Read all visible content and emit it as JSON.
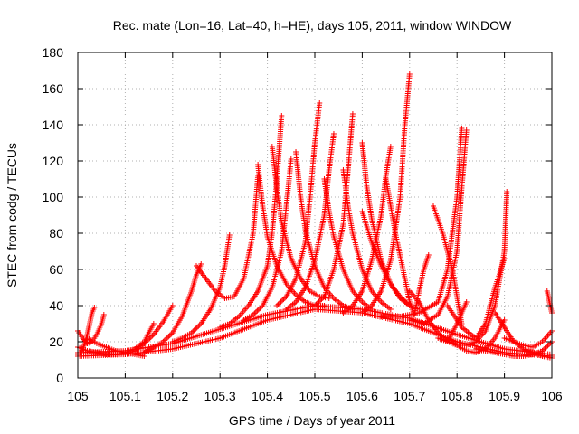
{
  "chart_data": {
    "type": "scatter",
    "title": "Rec. mate (Lon=16, Lat=40, h=HE), days 105, 2011, window WINDOW",
    "xlabel": "GPS time / Days of year 2011",
    "ylabel": "STEC from codg / TECUs",
    "xlim": [
      105,
      106
    ],
    "ylim": [
      0,
      180
    ],
    "x_ticks": [
      105,
      105.1,
      105.2,
      105.3,
      105.4,
      105.5,
      105.6,
      105.7,
      105.8,
      105.9,
      106
    ],
    "x_tick_labels": [
      "105",
      "105.1",
      "105.2",
      "105.3",
      "105.4",
      "105.5",
      "105.6",
      "105.7",
      "105.8",
      "105.9",
      "106"
    ],
    "y_ticks": [
      0,
      20,
      40,
      60,
      80,
      100,
      120,
      140,
      160,
      180
    ],
    "y_tick_labels": [
      "0",
      "20",
      "40",
      "60",
      "80",
      "100",
      "120",
      "140",
      "160",
      "180"
    ],
    "grid": true,
    "marker": "plus",
    "color": "#ff0000",
    "series": [
      {
        "x": [
          105.0,
          105.005,
          105.01,
          105.015,
          105.02,
          105.025,
          105.03,
          105.035
        ],
        "y": [
          13,
          14,
          16,
          19,
          24,
          30,
          36,
          39
        ]
      },
      {
        "x": [
          105.0,
          105.01,
          105.02,
          105.03,
          105.04,
          105.05,
          105.055
        ],
        "y": [
          26,
          22,
          19,
          20,
          24,
          30,
          35
        ]
      },
      {
        "x": [
          105.0,
          105.02,
          105.04,
          105.06,
          105.08,
          105.1,
          105.12,
          105.14,
          105.16
        ],
        "y": [
          17,
          15,
          14,
          13,
          13,
          14,
          16,
          20,
          30
        ]
      },
      {
        "x": [
          105.02,
          105.04,
          105.06,
          105.08,
          105.1,
          105.12,
          105.14
        ],
        "y": [
          22,
          19,
          17,
          15,
          14,
          13,
          12
        ]
      },
      {
        "x": [
          105.1,
          105.12,
          105.14,
          105.16,
          105.18,
          105.2
        ],
        "y": [
          13,
          15,
          19,
          24,
          31,
          40
        ]
      },
      {
        "x": [
          105.14,
          105.16,
          105.18,
          105.2,
          105.22,
          105.24,
          105.25,
          105.26
        ],
        "y": [
          14,
          17,
          20,
          25,
          34,
          48,
          57,
          63
        ]
      },
      {
        "x": [
          105.2,
          105.22,
          105.24,
          105.26,
          105.28,
          105.3,
          105.31,
          105.32
        ],
        "y": [
          20,
          22,
          25,
          30,
          38,
          50,
          62,
          79
        ]
      },
      {
        "x": [
          105.25,
          105.27,
          105.29,
          105.31,
          105.33,
          105.35,
          105.37,
          105.38
        ],
        "y": [
          62,
          55,
          48,
          44,
          45,
          55,
          80,
          112
        ]
      },
      {
        "x": [
          105.3,
          105.32,
          105.34,
          105.36,
          105.38,
          105.4,
          105.41,
          105.42,
          105.43
        ],
        "y": [
          28,
          30,
          34,
          40,
          48,
          62,
          80,
          110,
          145
        ]
      },
      {
        "x": [
          105.38,
          105.39,
          105.4,
          105.42,
          105.44,
          105.46,
          105.48,
          105.5,
          105.52
        ],
        "y": [
          118,
          95,
          78,
          62,
          52,
          46,
          42,
          40,
          40
        ]
      },
      {
        "x": [
          105.41,
          105.42,
          105.43,
          105.45,
          105.47,
          105.49,
          105.51,
          105.53
        ],
        "y": [
          128,
          105,
          86,
          66,
          55,
          48,
          45,
          44
        ]
      },
      {
        "x": [
          105.35,
          105.37,
          105.39,
          105.41,
          105.43,
          105.44,
          105.45
        ],
        "y": [
          32,
          35,
          40,
          50,
          70,
          95,
          121
        ]
      },
      {
        "x": [
          105.42,
          105.44,
          105.46,
          105.48,
          105.49,
          105.5,
          105.51
        ],
        "y": [
          40,
          45,
          55,
          75,
          100,
          130,
          152
        ]
      },
      {
        "x": [
          105.44,
          105.46,
          105.48,
          105.5,
          105.52,
          105.53,
          105.54
        ],
        "y": [
          38,
          42,
          50,
          65,
          90,
          115,
          135
        ]
      },
      {
        "x": [
          105.46,
          105.47,
          105.48,
          105.5,
          105.52,
          105.54,
          105.56,
          105.58
        ],
        "y": [
          125,
          100,
          82,
          62,
          50,
          44,
          40,
          38
        ]
      },
      {
        "x": [
          105.5,
          105.52,
          105.54,
          105.56,
          105.57,
          105.58
        ],
        "y": [
          40,
          45,
          60,
          85,
          115,
          146
        ]
      },
      {
        "x": [
          105.52,
          105.53,
          105.54,
          105.56,
          105.58,
          105.6,
          105.62
        ],
        "y": [
          110,
          92,
          78,
          60,
          48,
          42,
          38
        ]
      },
      {
        "x": [
          105.56,
          105.57,
          105.58,
          105.6,
          105.62,
          105.64,
          105.66
        ],
        "y": [
          115,
          95,
          80,
          60,
          48,
          42,
          38
        ]
      },
      {
        "x": [
          105.6,
          105.61,
          105.62,
          105.64,
          105.66,
          105.68,
          105.7
        ],
        "y": [
          130,
          105,
          88,
          65,
          52,
          44,
          40
        ]
      },
      {
        "x": [
          105.56,
          105.58,
          105.6,
          105.62,
          105.64,
          105.65,
          105.66
        ],
        "y": [
          36,
          40,
          48,
          65,
          90,
          112,
          128
        ]
      },
      {
        "x": [
          105.6,
          105.62,
          105.64,
          105.66,
          105.68,
          105.69,
          105.7
        ],
        "y": [
          36,
          40,
          48,
          65,
          100,
          140,
          168
        ]
      },
      {
        "x": [
          105.6,
          105.62,
          105.64,
          105.66,
          105.68,
          105.7,
          105.72
        ],
        "y": [
          92,
          75,
          62,
          52,
          45,
          40,
          38
        ]
      },
      {
        "x": [
          105.65,
          105.67,
          105.69,
          105.7,
          105.71,
          105.72,
          105.73,
          105.74
        ],
        "y": [
          110,
          80,
          55,
          42,
          35,
          48,
          60,
          68
        ]
      },
      {
        "x": [
          105.64,
          105.68,
          105.72,
          105.76,
          105.78,
          105.8,
          105.81
        ],
        "y": [
          34,
          34,
          36,
          42,
          60,
          100,
          138
        ]
      },
      {
        "x": [
          105.7,
          105.73,
          105.76,
          105.78,
          105.8,
          105.81,
          105.82
        ],
        "y": [
          32,
          30,
          35,
          45,
          70,
          105,
          137
        ]
      },
      {
        "x": [
          105.7,
          105.72,
          105.74,
          105.76,
          105.78,
          105.8,
          105.82
        ],
        "y": [
          48,
          42,
          32,
          25,
          20,
          30,
          42
        ]
      },
      {
        "x": [
          105.75,
          105.77,
          105.79,
          105.8,
          105.81
        ],
        "y": [
          95,
          80,
          60,
          45,
          30
        ]
      },
      {
        "x": [
          105.76,
          105.78,
          105.8,
          105.82,
          105.84,
          105.86,
          105.88,
          105.9,
          105.905
        ],
        "y": [
          22,
          20,
          18,
          18,
          20,
          26,
          40,
          70,
          103
        ]
      },
      {
        "x": [
          105.78,
          105.8,
          105.82,
          105.84,
          105.86,
          105.88,
          105.9
        ],
        "y": [
          22,
          18,
          15,
          14,
          16,
          22,
          32
        ]
      },
      {
        "x": [
          105.78,
          105.81,
          105.84,
          105.86,
          105.88,
          105.9
        ],
        "y": [
          40,
          28,
          22,
          30,
          50,
          66
        ]
      },
      {
        "x": [
          105.84,
          105.86,
          105.88,
          105.9,
          105.92,
          105.94,
          105.96,
          105.98,
          106.0
        ],
        "y": [
          16,
          15,
          14,
          13,
          12,
          12,
          13,
          15,
          20
        ]
      },
      {
        "x": [
          105.88,
          105.9,
          105.92,
          105.94,
          105.96,
          105.98,
          106.0
        ],
        "y": [
          36,
          28,
          20,
          16,
          14,
          12,
          11
        ]
      },
      {
        "x": [
          105.9,
          105.92,
          105.94,
          105.96,
          105.98,
          106.0
        ],
        "y": [
          22,
          20,
          18,
          17,
          20,
          26
        ]
      },
      {
        "x": [
          105.99,
          105.995,
          106.0
        ],
        "y": [
          48,
          42,
          36
        ]
      },
      {
        "x": [
          105.0,
          105.1,
          105.2,
          105.3,
          105.4,
          105.5,
          105.6,
          105.7,
          105.8,
          105.9,
          106.0
        ],
        "y": [
          12,
          13,
          16,
          22,
          32,
          38,
          36,
          30,
          20,
          14,
          12
        ]
      },
      {
        "x": [
          105.0,
          105.1,
          105.2,
          105.3,
          105.4,
          105.5,
          105.6,
          105.7,
          105.8,
          105.9,
          106.0
        ],
        "y": [
          14,
          15,
          19,
          27,
          35,
          40,
          38,
          33,
          24,
          16,
          13
        ]
      }
    ]
  }
}
